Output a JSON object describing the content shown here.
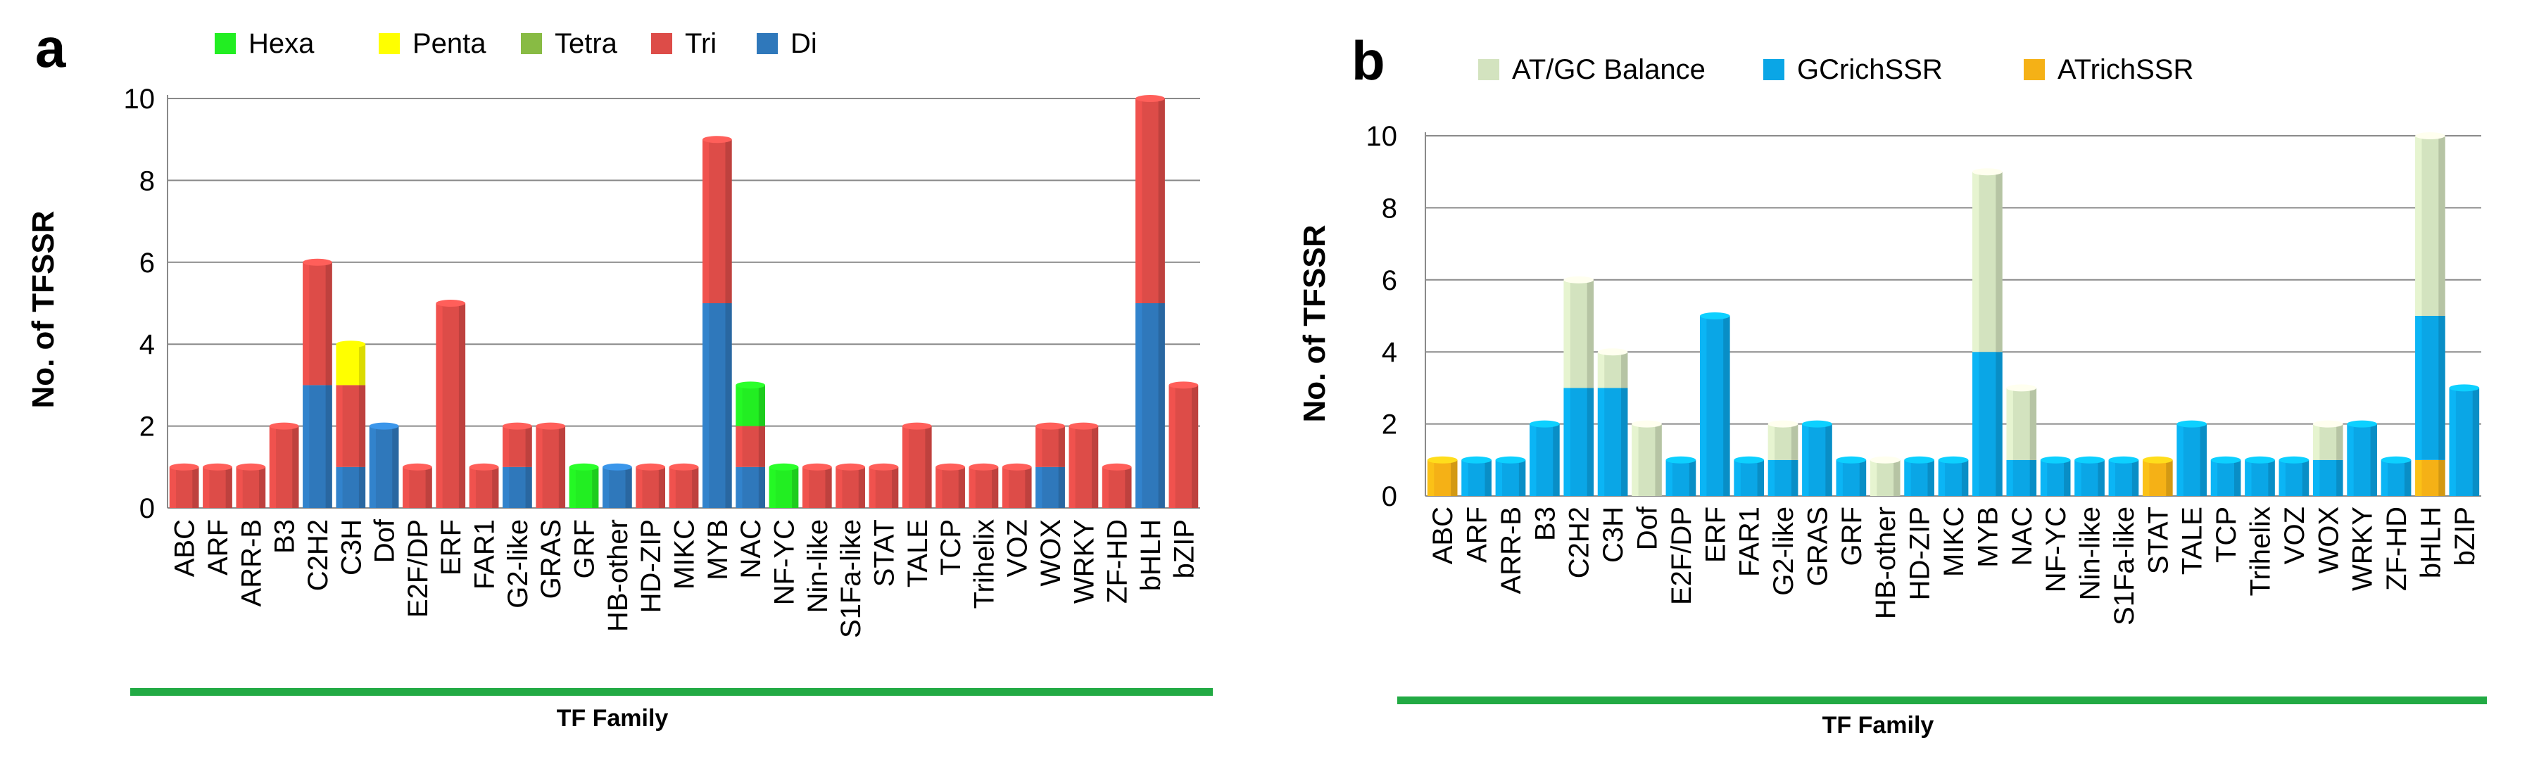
{
  "colors": {
    "Hexa": "#22ee22",
    "Penta": "#ffff00",
    "Tetra": "#88bb44",
    "Tri": "#dd4c48",
    "Di": "#2f78bb",
    "AT/GC Balance": "#d3e3bf",
    "GCrichSSR": "#0aa6e6",
    "ATrichSSR": "#f5b116",
    "xbar": "#22aa44"
  },
  "chart_data": [
    {
      "panel": "a",
      "type": "bar",
      "stacked": true,
      "ylabel": "No.  of TFSSR",
      "xlabel": "TF Family",
      "ylim": [
        0,
        10
      ],
      "yticks": [
        "0",
        "2",
        "4",
        "6",
        "8",
        "10"
      ],
      "legend": [
        "Hexa",
        "Penta",
        "Tetra",
        "Tri",
        "Di"
      ],
      "legend_position": "top",
      "categories": [
        "ABC",
        "ARF",
        "ARR-B",
        "B3",
        "C2H2",
        "C3H",
        "Dof",
        "E2F/DP",
        "ERF",
        "FAR1",
        "G2-like",
        "GRAS",
        "GRF",
        "HB-other",
        "HD-ZIP",
        "MIKC",
        "MYB",
        "NAC",
        "NF-YC",
        "Nin-like",
        "S1Fa-like",
        "STAT",
        "TALE",
        "TCP",
        "Trihelix",
        "VOZ",
        "WOX",
        "WRKY",
        "ZF-HD",
        "bHLH",
        "bZIP"
      ],
      "series": [
        {
          "name": "Di",
          "values": [
            0,
            0,
            0,
            0,
            3,
            1,
            2,
            0,
            0,
            0,
            1,
            0,
            0,
            1,
            0,
            0,
            5,
            1,
            0,
            0,
            0,
            0,
            0,
            0,
            0,
            0,
            1,
            0,
            0,
            5,
            0
          ]
        },
        {
          "name": "Tri",
          "values": [
            1,
            1,
            1,
            2,
            3,
            2,
            0,
            1,
            5,
            1,
            1,
            2,
            0,
            0,
            1,
            1,
            4,
            1,
            0,
            1,
            1,
            1,
            2,
            1,
            1,
            1,
            1,
            2,
            1,
            5,
            3
          ]
        },
        {
          "name": "Tetra",
          "values": [
            0,
            0,
            0,
            0,
            0,
            0,
            0,
            0,
            0,
            0,
            0,
            0,
            0,
            0,
            0,
            0,
            0,
            0,
            0,
            0,
            0,
            0,
            0,
            0,
            0,
            0,
            0,
            0,
            0,
            0,
            0
          ]
        },
        {
          "name": "Penta",
          "values": [
            0,
            0,
            0,
            0,
            0,
            1,
            0,
            0,
            0,
            0,
            0,
            0,
            0,
            0,
            0,
            0,
            0,
            0,
            0,
            0,
            0,
            0,
            0,
            0,
            0,
            0,
            0,
            0,
            0,
            0,
            0
          ]
        },
        {
          "name": "Hexa",
          "values": [
            0,
            0,
            0,
            0,
            0,
            0,
            0,
            0,
            0,
            0,
            0,
            0,
            1,
            0,
            0,
            0,
            0,
            1,
            1,
            0,
            0,
            0,
            0,
            0,
            0,
            0,
            0,
            0,
            0,
            0,
            0
          ]
        }
      ]
    },
    {
      "panel": "b",
      "type": "bar",
      "stacked": true,
      "ylabel": "No.  of TFSSR",
      "xlabel": "TF Family",
      "ylim": [
        0,
        10
      ],
      "yticks": [
        "0",
        "2",
        "4",
        "6",
        "8",
        "10"
      ],
      "legend": [
        "AT/GC Balance",
        "GCrichSSR",
        "ATrichSSR"
      ],
      "legend_position": "top",
      "categories": [
        "ABC",
        "ARF",
        "ARR-B",
        "B3",
        "C2H2",
        "C3H",
        "Dof",
        "E2F/DP",
        "ERF",
        "FAR1",
        "G2-like",
        "GRAS",
        "GRF",
        "HB-other",
        "HD-ZIP",
        "MIKC",
        "MYB",
        "NAC",
        "NF-YC",
        "Nin-like",
        "S1Fa-like",
        "STAT",
        "TALE",
        "TCP",
        "Trihelix",
        "VOZ",
        "WOX",
        "WRKY",
        "ZF-HD",
        "bHLH",
        "bZIP"
      ],
      "series": [
        {
          "name": "ATrichSSR",
          "values": [
            1,
            0,
            0,
            0,
            0,
            0,
            0,
            0,
            0,
            0,
            0,
            0,
            0,
            0,
            0,
            0,
            0,
            0,
            0,
            0,
            0,
            1,
            0,
            0,
            0,
            0,
            0,
            0,
            0,
            1,
            0
          ]
        },
        {
          "name": "GCrichSSR",
          "values": [
            0,
            1,
            1,
            2,
            3,
            3,
            0,
            1,
            5,
            1,
            1,
            2,
            1,
            0,
            1,
            1,
            4,
            1,
            1,
            1,
            1,
            0,
            2,
            1,
            1,
            1,
            1,
            2,
            1,
            4,
            3
          ]
        },
        {
          "name": "AT/GC Balance",
          "values": [
            0,
            0,
            0,
            0,
            3,
            1,
            2,
            0,
            0,
            0,
            1,
            0,
            0,
            1,
            0,
            0,
            5,
            2,
            0,
            0,
            0,
            0,
            0,
            0,
            0,
            0,
            1,
            0,
            0,
            5,
            0
          ]
        }
      ]
    }
  ]
}
